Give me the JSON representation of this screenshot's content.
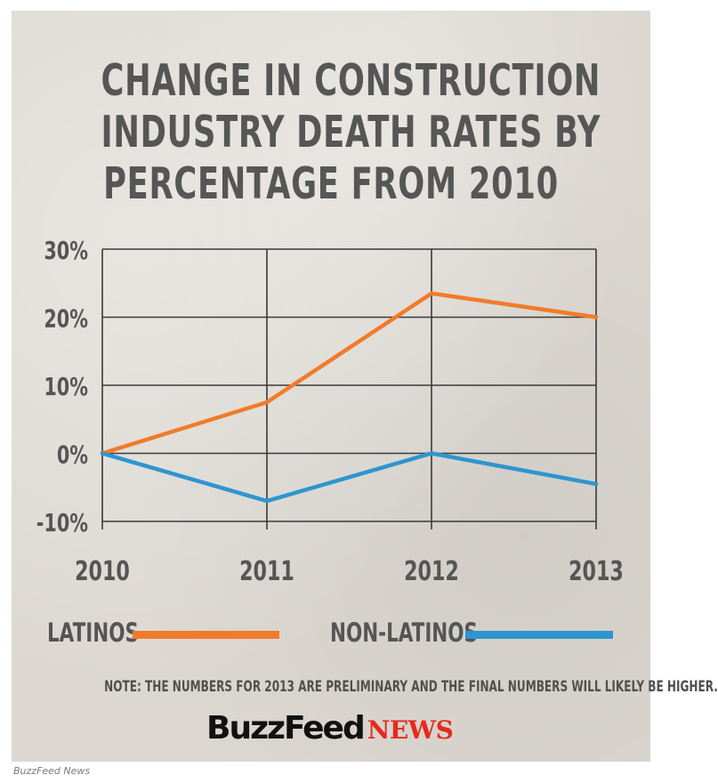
{
  "title_lines": [
    "CHANGE IN CONSTRUCTION",
    "INDUSTRY DEATH RATES BY",
    "PERCENTAGE FROM 2010"
  ],
  "note": "NOTE: THE NUMBERS FOR 2013 ARE PRELIMINARY AND THE FINAL NUMBERS WILL LIKELY BE HIGHER.",
  "logo": {
    "buzzfeed": "BuzzFeed",
    "news": "NEWS"
  },
  "credit": "BuzzFeed News",
  "legend": [
    {
      "label": "LATINOS",
      "color": "#f07b2a"
    },
    {
      "label": "NON-LATINOS",
      "color": "#2e95cf"
    }
  ],
  "chart_data": {
    "type": "line",
    "title": "CHANGE IN CONSTRUCTION INDUSTRY DEATH RATES BY PERCENTAGE FROM 2010",
    "x": [
      "2010",
      "2011",
      "2012",
      "2013"
    ],
    "y_ticks": [
      30,
      20,
      10,
      0,
      -10
    ],
    "y_tick_labels": [
      "30%",
      "20%",
      "10%",
      "0%",
      "-10%"
    ],
    "ylim": [
      -10,
      30
    ],
    "grid": true,
    "legend_position": "bottom",
    "series": [
      {
        "name": "LATINOS",
        "color": "#f07b2a",
        "values": [
          0,
          7.5,
          23.5,
          20
        ]
      },
      {
        "name": "NON-LATINOS",
        "color": "#2e95cf",
        "values": [
          0,
          -7,
          0,
          -4.5
        ]
      }
    ]
  }
}
